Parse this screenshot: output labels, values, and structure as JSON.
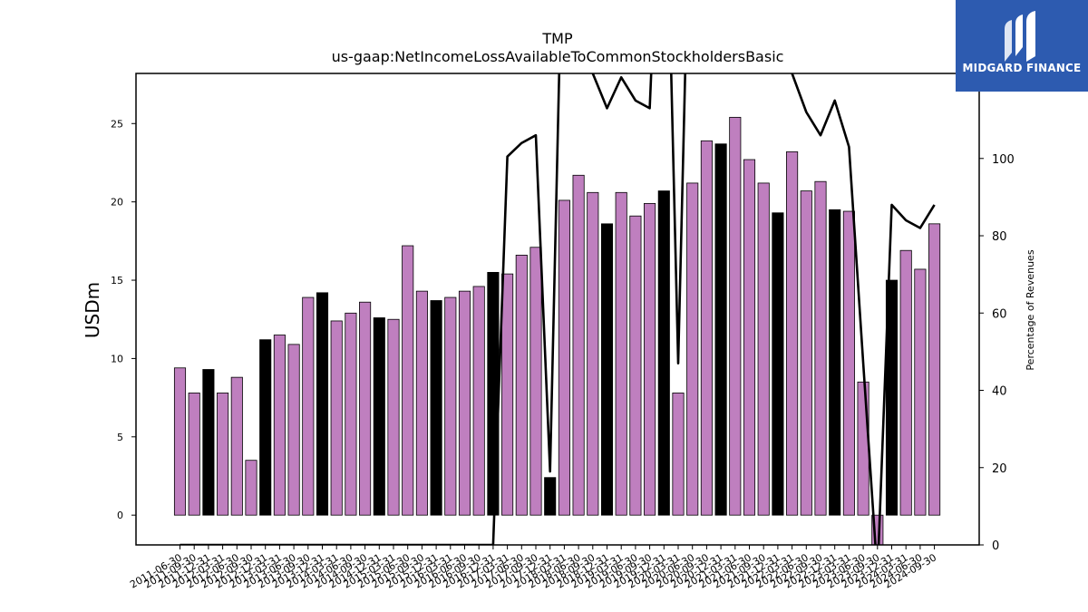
{
  "brand": {
    "name": "MIDGARD FINANCE",
    "bg": "#2d5bb0",
    "fg": "#ffffff"
  },
  "chart_data": {
    "type": "bar",
    "title": "TMP",
    "subtitle": "us-gaap:NetIncomeLossAvailableToCommonStockholdersBasic",
    "ylabel": "USDm",
    "y2label": "Percentage of Revenues",
    "ylim": [
      -1.9,
      28.2
    ],
    "y2lim": [
      0,
      122
    ],
    "yticks": [
      0,
      5,
      10,
      15,
      20,
      25
    ],
    "y2ticks": [
      0,
      20,
      40,
      60,
      80,
      100
    ],
    "colors": {
      "quarter": "#bf7fbf",
      "annual": "#000000",
      "line": "#000000"
    },
    "categories": [
      "2011-06-30",
      "2011-09-30",
      "2011-12-31",
      "2012-03-31",
      "2012-06-30",
      "2012-09-30",
      "2012-12-31",
      "2013-03-31",
      "2013-06-30",
      "2013-09-30",
      "2013-12-31",
      "2014-03-31",
      "2014-06-30",
      "2014-09-30",
      "2014-12-31",
      "2015-03-31",
      "2015-06-30",
      "2015-09-30",
      "2015-12-31",
      "2016-03-31",
      "2016-06-30",
      "2016-09-30",
      "2016-12-31",
      "2017-03-31",
      "2017-06-30",
      "2017-09-30",
      "2017-12-31",
      "2018-03-31",
      "2018-06-30",
      "2018-09-30",
      "2018-12-31",
      "2019-03-31",
      "2019-06-30",
      "2019-09-30",
      "2019-12-31",
      "2020-03-31",
      "2020-06-30",
      "2020-09-30",
      "2020-12-31",
      "2021-03-31",
      "2021-06-30",
      "2021-09-30",
      "2021-12-31",
      "2022-03-31",
      "2022-06-30",
      "2022-09-30",
      "2022-12-31",
      "2023-03-31",
      "2023-06-30",
      "2023-09-30",
      "2023-12-31",
      "2024-03-31",
      "2024-06-30",
      "2024-09-30"
    ],
    "values": [
      9.4,
      7.8,
      9.3,
      7.8,
      8.8,
      3.5,
      11.2,
      11.5,
      10.9,
      13.9,
      14.2,
      12.4,
      12.9,
      13.6,
      12.6,
      12.5,
      17.2,
      14.3,
      13.7,
      13.9,
      14.3,
      14.6,
      15.5,
      15.4,
      16.6,
      17.1,
      2.4,
      20.1,
      21.7,
      20.6,
      18.6,
      20.6,
      19.1,
      19.9,
      20.7,
      7.8,
      21.2,
      23.9,
      23.7,
      25.4,
      22.7,
      21.2,
      19.3,
      23.2,
      20.7,
      21.3,
      19.5,
      19.4,
      8.5,
      -1.9,
      15.0,
      16.9,
      15.7,
      18.6
    ],
    "annual_flags": [
      0,
      0,
      1,
      0,
      0,
      0,
      1,
      0,
      0,
      0,
      1,
      0,
      0,
      0,
      1,
      0,
      0,
      0,
      1,
      0,
      0,
      0,
      1,
      0,
      0,
      0,
      1,
      0,
      0,
      0,
      1,
      0,
      0,
      0,
      1,
      0,
      0,
      0,
      1,
      0,
      0,
      0,
      1,
      0,
      0,
      0,
      1,
      0,
      0,
      0,
      1,
      0,
      0,
      0
    ],
    "line_series": [
      0,
      0,
      0,
      0,
      0,
      0,
      0,
      0,
      0,
      0,
      0,
      0,
      0,
      0,
      0,
      0,
      0,
      0,
      0,
      0,
      0,
      0,
      0,
      100.5,
      104,
      106,
      19,
      180,
      160,
      122,
      113,
      121,
      115,
      113,
      200,
      47,
      200,
      180,
      170,
      160,
      150,
      128,
      129,
      122,
      112,
      106,
      115,
      103,
      47,
      -8,
      88,
      84,
      82,
      88
    ]
  }
}
